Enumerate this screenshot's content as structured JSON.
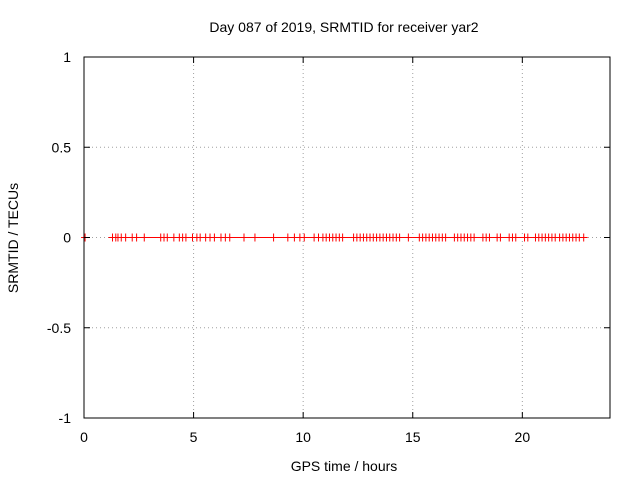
{
  "chart_data": {
    "type": "scatter",
    "title": "Day 087 of 2019, SRMTID for receiver yar2",
    "xlabel": "GPS time / hours",
    "ylabel": "SRMTID / TECUs",
    "xlim": [
      0,
      24
    ],
    "ylim": [
      -1,
      1
    ],
    "xticks": [
      0,
      5,
      10,
      15,
      20
    ],
    "yticks": [
      -1,
      -0.5,
      0,
      0.5,
      1
    ],
    "xtick_labels": [
      "0",
      "5",
      "10",
      "15",
      "20"
    ],
    "ytick_labels": [
      "-1",
      "-0.5",
      "0",
      "0.5",
      "1"
    ],
    "grid": true,
    "marker": "+",
    "color": "#ff0000",
    "series": [
      {
        "name": "yar2",
        "points": [
          {
            "x": 0.05,
            "y": 0
          },
          {
            "x": 1.3,
            "y": 0
          },
          {
            "x": 1.45,
            "y": 0
          },
          {
            "x": 1.55,
            "y": 0
          },
          {
            "x": 1.7,
            "y": 0
          },
          {
            "x": 1.9,
            "y": 0
          },
          {
            "x": 2.2,
            "y": 0
          },
          {
            "x": 2.4,
            "y": 0
          },
          {
            "x": 2.75,
            "y": 0
          },
          {
            "x": 3.5,
            "y": 0
          },
          {
            "x": 3.65,
            "y": 0
          },
          {
            "x": 3.8,
            "y": 0
          },
          {
            "x": 4.1,
            "y": 0
          },
          {
            "x": 4.35,
            "y": 0
          },
          {
            "x": 4.5,
            "y": 0
          },
          {
            "x": 4.65,
            "y": 0
          },
          {
            "x": 4.95,
            "y": 0
          },
          {
            "x": 5.15,
            "y": 0
          },
          {
            "x": 5.3,
            "y": 0
          },
          {
            "x": 5.55,
            "y": 0
          },
          {
            "x": 5.75,
            "y": 0
          },
          {
            "x": 5.95,
            "y": 0
          },
          {
            "x": 6.25,
            "y": 0
          },
          {
            "x": 6.45,
            "y": 0
          },
          {
            "x": 6.65,
            "y": 0
          },
          {
            "x": 7.3,
            "y": 0
          },
          {
            "x": 7.8,
            "y": 0
          },
          {
            "x": 8.65,
            "y": 0
          },
          {
            "x": 9.3,
            "y": 0
          },
          {
            "x": 9.6,
            "y": 0
          },
          {
            "x": 9.85,
            "y": 0
          },
          {
            "x": 10.05,
            "y": 0
          },
          {
            "x": 10.5,
            "y": 0
          },
          {
            "x": 10.7,
            "y": 0
          },
          {
            "x": 10.9,
            "y": 0
          },
          {
            "x": 11.05,
            "y": 0
          },
          {
            "x": 11.2,
            "y": 0
          },
          {
            "x": 11.35,
            "y": 0
          },
          {
            "x": 11.5,
            "y": 0
          },
          {
            "x": 11.65,
            "y": 0
          },
          {
            "x": 11.8,
            "y": 0
          },
          {
            "x": 12.3,
            "y": 0
          },
          {
            "x": 12.45,
            "y": 0
          },
          {
            "x": 12.6,
            "y": 0
          },
          {
            "x": 12.75,
            "y": 0
          },
          {
            "x": 12.9,
            "y": 0
          },
          {
            "x": 13.05,
            "y": 0
          },
          {
            "x": 13.2,
            "y": 0
          },
          {
            "x": 13.35,
            "y": 0
          },
          {
            "x": 13.5,
            "y": 0
          },
          {
            "x": 13.65,
            "y": 0
          },
          {
            "x": 13.8,
            "y": 0
          },
          {
            "x": 13.95,
            "y": 0
          },
          {
            "x": 14.1,
            "y": 0
          },
          {
            "x": 14.25,
            "y": 0
          },
          {
            "x": 14.4,
            "y": 0
          },
          {
            "x": 14.8,
            "y": 0
          },
          {
            "x": 15.3,
            "y": 0
          },
          {
            "x": 15.45,
            "y": 0
          },
          {
            "x": 15.6,
            "y": 0
          },
          {
            "x": 15.75,
            "y": 0
          },
          {
            "x": 15.9,
            "y": 0
          },
          {
            "x": 16.05,
            "y": 0
          },
          {
            "x": 16.2,
            "y": 0
          },
          {
            "x": 16.35,
            "y": 0
          },
          {
            "x": 16.5,
            "y": 0
          },
          {
            "x": 16.9,
            "y": 0
          },
          {
            "x": 17.05,
            "y": 0
          },
          {
            "x": 17.2,
            "y": 0
          },
          {
            "x": 17.35,
            "y": 0
          },
          {
            "x": 17.5,
            "y": 0
          },
          {
            "x": 17.65,
            "y": 0
          },
          {
            "x": 17.8,
            "y": 0
          },
          {
            "x": 18.2,
            "y": 0
          },
          {
            "x": 18.35,
            "y": 0
          },
          {
            "x": 18.5,
            "y": 0
          },
          {
            "x": 18.85,
            "y": 0
          },
          {
            "x": 19.0,
            "y": 0
          },
          {
            "x": 19.4,
            "y": 0
          },
          {
            "x": 19.55,
            "y": 0
          },
          {
            "x": 19.7,
            "y": 0
          },
          {
            "x": 20.1,
            "y": 0
          },
          {
            "x": 20.25,
            "y": 0
          },
          {
            "x": 20.6,
            "y": 0
          },
          {
            "x": 20.75,
            "y": 0
          },
          {
            "x": 20.9,
            "y": 0
          },
          {
            "x": 21.05,
            "y": 0
          },
          {
            "x": 21.2,
            "y": 0
          },
          {
            "x": 21.35,
            "y": 0
          },
          {
            "x": 21.5,
            "y": 0
          },
          {
            "x": 21.7,
            "y": 0
          },
          {
            "x": 21.85,
            "y": 0
          },
          {
            "x": 22.0,
            "y": 0
          },
          {
            "x": 22.15,
            "y": 0
          },
          {
            "x": 22.3,
            "y": 0
          },
          {
            "x": 22.45,
            "y": 0
          },
          {
            "x": 22.6,
            "y": 0
          },
          {
            "x": 22.8,
            "y": 0
          }
        ]
      }
    ]
  }
}
